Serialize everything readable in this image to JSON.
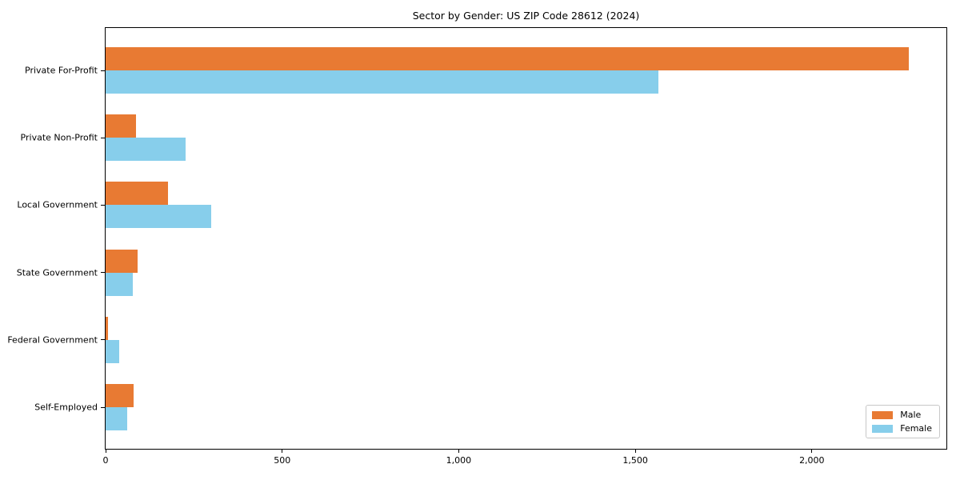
{
  "chart_data": {
    "type": "bar",
    "orientation": "horizontal",
    "title": "Sector by Gender: US ZIP Code 28612 (2024)",
    "categories": [
      "Private For-Profit",
      "Private Non-Profit",
      "Local Government",
      "State Government",
      "Federal Government",
      "Self-Employed"
    ],
    "series": [
      {
        "name": "Male",
        "color": "#E87A33",
        "values": [
          2275,
          86,
          177,
          91,
          7,
          79
        ]
      },
      {
        "name": "Female",
        "color": "#87CEEB",
        "values": [
          1565,
          227,
          299,
          77,
          39,
          61
        ]
      }
    ],
    "xlabel": "",
    "ylabel": "",
    "x_ticks": [
      0,
      500,
      1000,
      1500,
      2000
    ],
    "x_tick_labels": [
      "0",
      "500",
      "1,000",
      "1,500",
      "2,000"
    ],
    "xlim": [
      0,
      2381
    ],
    "grid": false,
    "legend_position": "lower right",
    "colors": {
      "male": "#E87A33",
      "female": "#87CEEB",
      "spine": "#000000",
      "background": "#ffffff"
    }
  }
}
